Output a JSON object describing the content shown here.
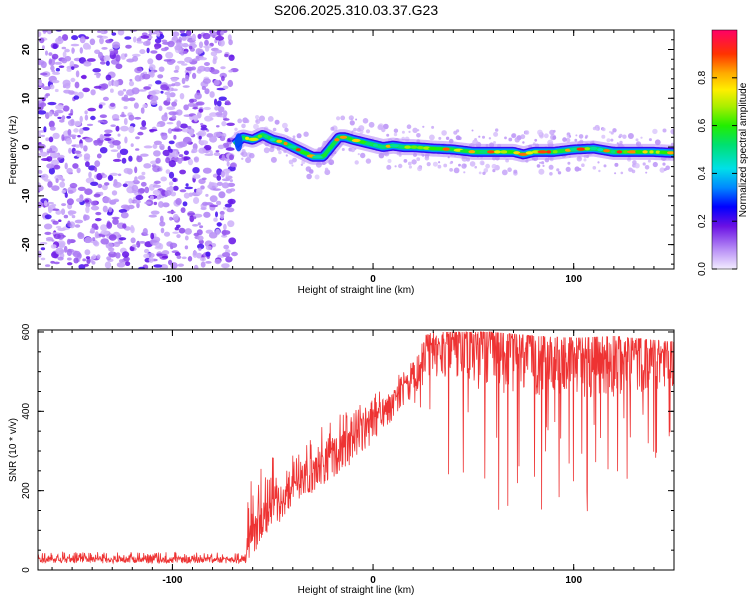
{
  "figure": {
    "title": "S206.2025.310.03.37.G23"
  },
  "chart_data": [
    {
      "type": "heatmap",
      "title": "S206.2025.310.03.37.G23",
      "xlabel": "Height of straight line (km)",
      "ylabel": "Frequency (Hz)",
      "xlim": [
        -167,
        150
      ],
      "ylim": [
        -25,
        24
      ],
      "x_ticks": [
        -100,
        0,
        100
      ],
      "y_ticks": [
        20,
        10,
        0,
        -10,
        -20
      ],
      "noise_region_x": [
        -167,
        -69
      ],
      "noise_region_note": "scattered low-amplitude (violet) speckle noise across full frequency band",
      "ridge": {
        "x": [
          -69,
          -65,
          -60,
          -55,
          -50,
          -45,
          -40,
          -35,
          -30,
          -25,
          -20,
          -17,
          -14,
          -10,
          -5,
          0,
          5,
          10,
          15,
          20,
          30,
          40,
          50,
          60,
          70,
          75,
          80,
          90,
          100,
          110,
          120,
          130,
          140,
          150
        ],
        "freq": [
          0.5,
          2.0,
          1.5,
          2.5,
          1.5,
          1.0,
          0.0,
          -1.0,
          -2.0,
          -2.0,
          0.5,
          2.0,
          2.0,
          1.5,
          1.0,
          0.5,
          0.0,
          0.3,
          0.0,
          0.0,
          -0.3,
          -0.5,
          -1.0,
          -1.0,
          -1.0,
          -1.5,
          -1.0,
          -1.0,
          -0.5,
          -0.3,
          -1.0,
          -1.0,
          -1.0,
          -1.2
        ],
        "peak_amplitude": 0.9
      },
      "colorbar": {
        "label": "Normalized spectral amplitude",
        "range": [
          0.0,
          1.0
        ],
        "ticks": [
          0.0,
          0.2,
          0.4,
          0.6,
          0.8
        ],
        "tick_labels": [
          "0.0",
          "0.2",
          "0.4",
          "0.6",
          "0.8"
        ]
      }
    },
    {
      "type": "line",
      "xlabel": "Height of straight line (km)",
      "ylabel": "SNR (10 * v/v)",
      "xlim": [
        -167,
        150
      ],
      "ylim": [
        0,
        605
      ],
      "x_ticks": [
        -100,
        0,
        100
      ],
      "y_ticks": [
        0,
        200,
        400,
        600
      ],
      "series": [
        {
          "name": "SNR",
          "color": "#ee3333",
          "envelope_x": [
            -167,
            -64,
            -62,
            -55,
            -45,
            -35,
            -25,
            -15,
            -5,
            0,
            10,
            20,
            25,
            30,
            40,
            50,
            60,
            80,
            100,
            120,
            150
          ],
          "envelope_mean": [
            25,
            25,
            60,
            120,
            175,
            220,
            260,
            300,
            340,
            370,
            420,
            480,
            520,
            560,
            570,
            560,
            550,
            540,
            530,
            535,
            530
          ],
          "envelope_low": [
            10,
            10,
            30,
            60,
            100,
            130,
            150,
            180,
            220,
            240,
            300,
            330,
            300,
            250,
            200,
            150,
            140,
            140,
            140,
            150,
            270
          ],
          "envelope_high": [
            45,
            45,
            225,
            270,
            300,
            335,
            370,
            400,
            430,
            450,
            480,
            530,
            590,
            600,
            600,
            600,
            600,
            590,
            585,
            590,
            575
          ]
        }
      ]
    }
  ]
}
